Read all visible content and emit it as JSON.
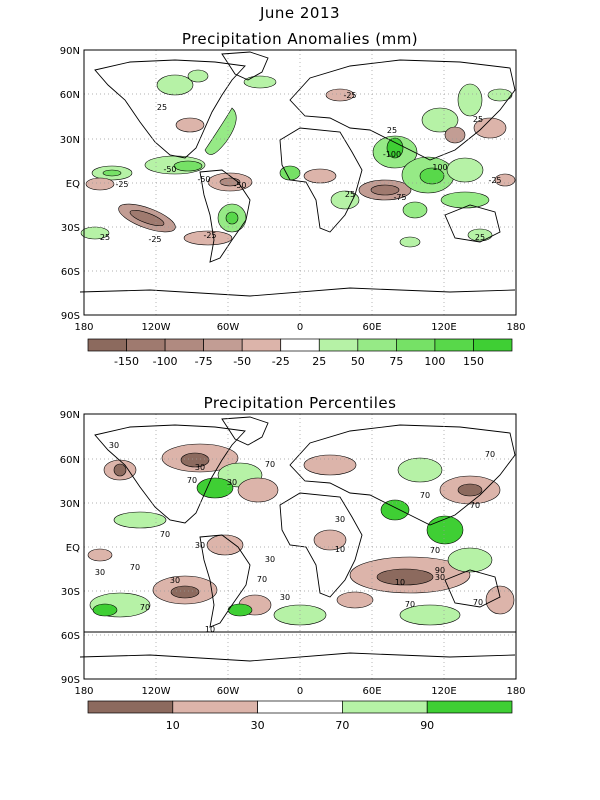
{
  "page_title": "June 2013",
  "panels": {
    "anomalies": {
      "title": "Precipitation Anomalies (mm)",
      "lat_labels": [
        "90N",
        "60N",
        "30N",
        "EQ",
        "30S",
        "60S",
        "90S"
      ],
      "lon_labels": [
        "180",
        "120W",
        "60W",
        "0",
        "60E",
        "120E",
        "180"
      ],
      "legend": {
        "labels": [
          "-150",
          "-100",
          "-75",
          "-50",
          "-25",
          "25",
          "50",
          "75",
          "100",
          "150"
        ],
        "colors": [
          "#8c6a5e",
          "#9f7a6f",
          "#b08a80",
          "#c29d94",
          "#dcb4aa",
          "#ffffff",
          "#b6f2a6",
          "#96ea86",
          "#76e166",
          "#58d84a",
          "#3fcf34"
        ]
      },
      "contour_labels": [
        "25",
        "-25",
        "-50",
        "-75",
        "75",
        "100",
        "-100",
        "50"
      ]
    },
    "percentiles": {
      "title": "Precipitation Percentiles",
      "lat_labels": [
        "90N",
        "60N",
        "30N",
        "EQ",
        "30S",
        "60S",
        "90S"
      ],
      "lon_labels": [
        "180",
        "120W",
        "60W",
        "0",
        "60E",
        "120E",
        "180"
      ],
      "legend": {
        "labels": [
          "10",
          "30",
          "70",
          "90"
        ],
        "colors": [
          "#8c6a5e",
          "#dcb4aa",
          "#ffffff",
          "#b6f2a6",
          "#3fcf34"
        ]
      },
      "contour_labels": [
        "10",
        "30",
        "70",
        "90"
      ]
    }
  }
}
